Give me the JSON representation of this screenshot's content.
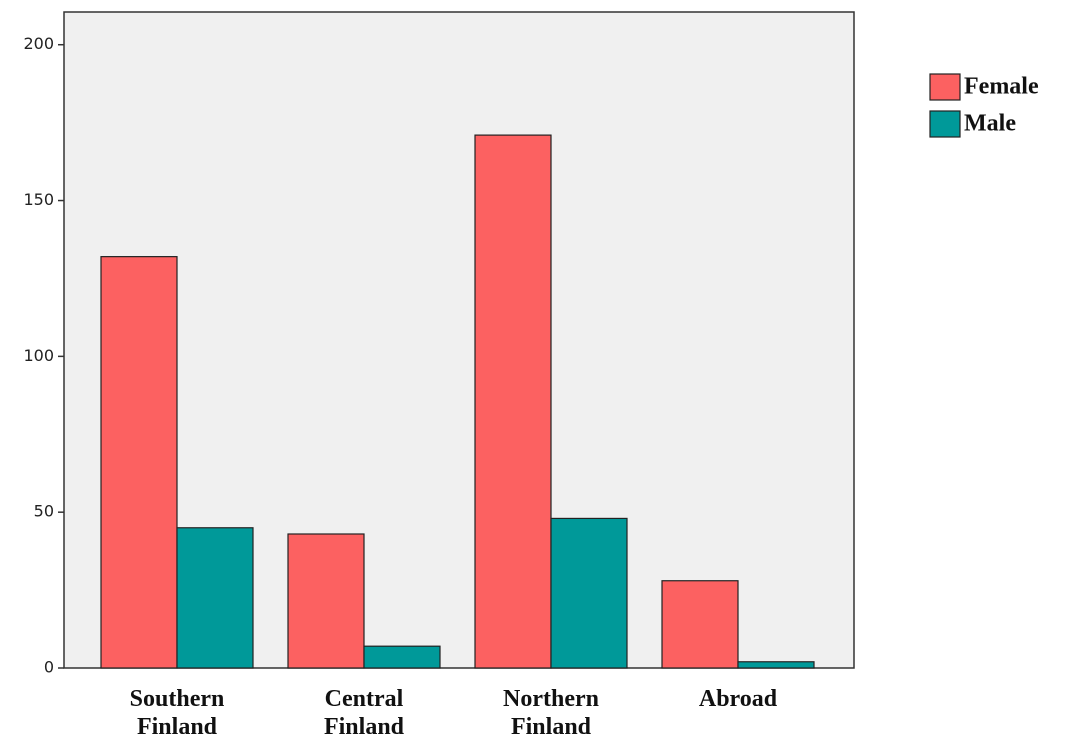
{
  "chart_data": {
    "type": "bar",
    "categories": [
      "Southern Finland",
      "Central Finland",
      "Northern Finland",
      "Abroad"
    ],
    "series": [
      {
        "name": "Female",
        "color": "#fc6161",
        "values": [
          132,
          43,
          171,
          28
        ]
      },
      {
        "name": "Male",
        "color": "#009999",
        "values": [
          45,
          7,
          48,
          2
        ]
      }
    ],
    "ylim": [
      0,
      210.5
    ],
    "yticks": [
      0,
      50,
      100,
      150,
      200
    ],
    "legend": "right"
  }
}
